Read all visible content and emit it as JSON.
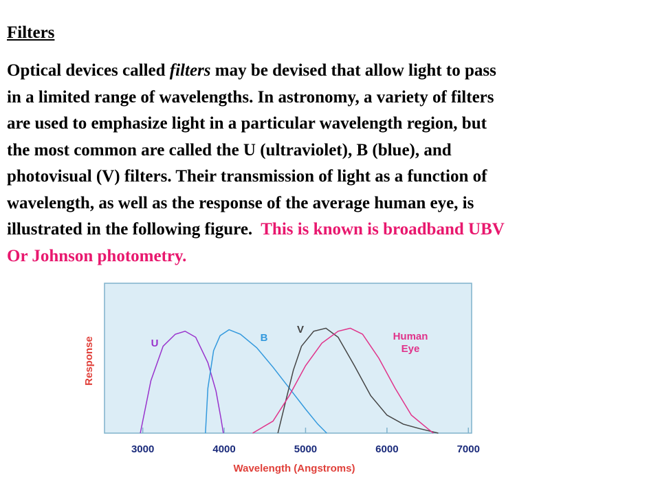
{
  "header": {
    "title": "Filters"
  },
  "body": {
    "lines": [
      [
        "Optical devices called ",
        "filters",
        " may be devised that allow light to pass"
      ],
      [
        "in a limited range of wavelengths. In astronomy, a variety of filters"
      ],
      [
        "are used to emphasize light in a particular wavelength region, but"
      ],
      [
        "the most common are called the U (ultraviolet), B (blue), and"
      ],
      [
        "photovisual (V) filters. Their transmission of light as a function of"
      ],
      [
        "wavelength, as well as the response of the average human eye, is"
      ],
      [
        "illustrated in the following figure.  ",
        "This is known is broadband UBV"
      ],
      [
        "Or Johnson photometry."
      ]
    ]
  },
  "chart_data": {
    "type": "line",
    "y_label": "Response",
    "x_label": "Wavelength (Angstroms)",
    "xlim": [
      2530,
      7040
    ],
    "xticks": [
      3000,
      4000,
      5000,
      6000,
      7000
    ],
    "ylim": [
      0,
      1
    ],
    "series": [
      {
        "name": "U",
        "color": "#9933cc",
        "x": [
          2970,
          3100,
          3250,
          3400,
          3520,
          3650,
          3800,
          3900,
          3960,
          3990
        ],
        "values": [
          0,
          0.35,
          0.58,
          0.66,
          0.68,
          0.64,
          0.47,
          0.28,
          0.1,
          0
        ]
      },
      {
        "name": "B",
        "color": "#3399dd",
        "x": [
          3770,
          3800,
          3870,
          3950,
          4060,
          4200,
          4400,
          4600,
          4800,
          5000,
          5150,
          5260
        ],
        "values": [
          0,
          0.3,
          0.55,
          0.65,
          0.69,
          0.66,
          0.57,
          0.44,
          0.3,
          0.16,
          0.06,
          0
        ]
      },
      {
        "name": "V",
        "color": "#444444",
        "x": [
          4660,
          4750,
          4850,
          4950,
          5100,
          5250,
          5400,
          5600,
          5800,
          6000,
          6200,
          6400,
          6630
        ],
        "values": [
          0,
          0.2,
          0.42,
          0.58,
          0.68,
          0.7,
          0.64,
          0.45,
          0.25,
          0.12,
          0.06,
          0.03,
          0
        ]
      },
      {
        "name": "Human Eye",
        "color": "#e0338a",
        "x": [
          4350,
          4600,
          4800,
          5000,
          5200,
          5400,
          5550,
          5700,
          5900,
          6100,
          6300,
          6500,
          6570
        ],
        "values": [
          0,
          0.08,
          0.25,
          0.45,
          0.6,
          0.68,
          0.7,
          0.66,
          0.5,
          0.3,
          0.12,
          0.03,
          0
        ]
      }
    ]
  }
}
